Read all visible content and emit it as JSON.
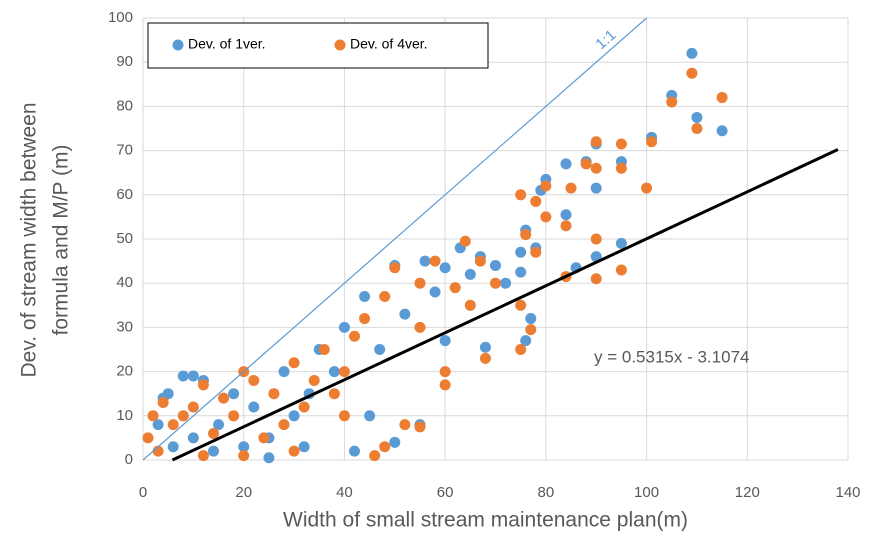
{
  "chart_data": {
    "type": "scatter",
    "x_label": "Width of small stream maintenance plan(m)",
    "y_label": [
      "Dev. of stream width between",
      "formula and M/P (m)"
    ],
    "xlim": [
      0,
      140
    ],
    "xticks": [
      0,
      20,
      40,
      60,
      80,
      100,
      120,
      140
    ],
    "ylim": [
      0,
      100
    ],
    "yticks": [
      0,
      10,
      20,
      30,
      40,
      50,
      60,
      70,
      80,
      90,
      100
    ],
    "grid": true,
    "legend": "upper left",
    "series": [
      {
        "name": "Dev. of 1ver.",
        "color": "#5b9bd5",
        "x": [
          109,
          105,
          110,
          115,
          101,
          95,
          90,
          90,
          88,
          84,
          84,
          80,
          79,
          78,
          76,
          75,
          75,
          76,
          77,
          68,
          70,
          67,
          65,
          63,
          60,
          60,
          56,
          55,
          50,
          50,
          45,
          44,
          42,
          40,
          38,
          35,
          33,
          30,
          28,
          25,
          22,
          20,
          18,
          15,
          12,
          10,
          8,
          5,
          4,
          3,
          6,
          10,
          14,
          25,
          32,
          47,
          52,
          58,
          72,
          95,
          90,
          86
        ],
        "values": [
          92,
          82.5,
          77.5,
          74.5,
          73,
          67.5,
          71.5,
          61.5,
          67.5,
          67,
          55.5,
          63.5,
          61,
          48,
          52,
          47,
          42.5,
          27,
          32,
          25.5,
          44,
          46,
          42,
          48,
          43.5,
          27,
          45,
          8,
          44,
          4,
          10,
          37,
          2,
          30,
          20,
          25,
          15,
          10,
          20,
          5,
          12,
          3,
          15,
          8,
          18,
          19,
          19,
          15,
          14,
          8,
          3,
          5,
          2,
          0.5,
          3,
          25,
          33,
          38,
          40,
          49,
          46,
          43.5
        ]
      },
      {
        "name": "Dev. of 4ver.",
        "color": "#ed7d31",
        "x": [
          109,
          105,
          115,
          110,
          101,
          100,
          95,
          95,
          95,
          90,
          90,
          90,
          90,
          88,
          85,
          84,
          84,
          80,
          80,
          78,
          78,
          77,
          76,
          75,
          75,
          75,
          68,
          70,
          67,
          64,
          60,
          60,
          62,
          55,
          55,
          50,
          52,
          48,
          46,
          44,
          42,
          40,
          38,
          36,
          34,
          32,
          30,
          28,
          26,
          24,
          22,
          20,
          18,
          16,
          14,
          12,
          10,
          8,
          6,
          4,
          2,
          1,
          3,
          12,
          20,
          30,
          40,
          55,
          65,
          58,
          48
        ],
        "values": [
          87.5,
          81,
          82,
          75,
          72,
          61.5,
          71.5,
          66,
          43,
          72,
          66,
          50,
          41,
          67,
          61.5,
          53,
          41.5,
          62,
          55,
          58.5,
          47,
          29.5,
          51,
          60,
          25,
          35,
          23,
          40,
          45,
          49.5,
          20,
          17,
          39,
          40,
          7.5,
          43.5,
          8,
          3,
          1,
          32,
          28,
          20,
          15,
          25,
          18,
          12,
          22,
          8,
          15,
          5,
          18,
          20,
          10,
          14,
          6,
          17,
          12,
          10,
          8,
          13,
          10,
          5,
          2,
          1,
          1,
          2,
          10,
          30,
          35,
          45,
          37
        ]
      }
    ],
    "reference_lines": [
      {
        "label": "1:1",
        "color": "#5b9bd5",
        "x": [
          0,
          100
        ],
        "y": [
          0,
          100
        ]
      },
      {
        "label": "y = 0.5315x - 3.1074",
        "color": "#000000",
        "x": [
          5.85,
          138
        ],
        "y": [
          0,
          70.24
        ]
      }
    ]
  }
}
